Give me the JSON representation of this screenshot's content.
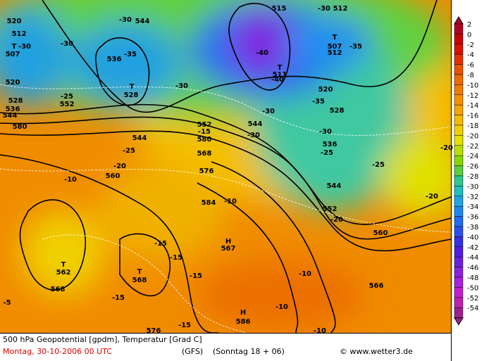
{
  "map": {
    "labels": [
      "520",
      "512",
      "T",
      "507",
      "-30",
      "520",
      "528",
      "536",
      "544",
      "552",
      "-25",
      "-30",
      "-30",
      "544",
      "-35",
      "536",
      "T",
      "528",
      "-30",
      "580",
      "544",
      "-25",
      "-20",
      "560",
      "-10",
      "552",
      "-15",
      "580",
      "568",
      "576",
      "584",
      "-10",
      "515",
      "-30",
      "512",
      "-40",
      "T",
      "511",
      "-40",
      "T",
      "507",
      "512",
      "-35",
      "520",
      "-35",
      "528",
      "-30",
      "544",
      "-30",
      "-30",
      "536",
      "-25",
      "544",
      "552",
      "-20",
      "-25",
      "-20",
      "-20",
      "560",
      "-15",
      "-15",
      "H",
      "567",
      "T",
      "562",
      "T",
      "568",
      "-15",
      "-10",
      "566",
      "-15",
      "568",
      "-5",
      "-10",
      "H",
      "586",
      "576",
      "-15",
      "-10"
    ]
  },
  "legend": {
    "ticks": [
      2,
      0,
      -2,
      -4,
      -6,
      -8,
      -10,
      -12,
      -14,
      -16,
      -18,
      -20,
      -22,
      -24,
      -26,
      -28,
      -30,
      -32,
      -34,
      -36,
      -38,
      -40,
      -42,
      -44,
      -46,
      -48,
      -50,
      -52,
      -54
    ],
    "colors": [
      "#b00020",
      "#c80000",
      "#d81000",
      "#e43000",
      "#ec5000",
      "#f06800",
      "#f07c00",
      "#f49000",
      "#f4a400",
      "#f4bc00",
      "#f0d000",
      "#e4e000",
      "#b8e000",
      "#88d800",
      "#58d040",
      "#30c890",
      "#20c0c0",
      "#20a4e4",
      "#2088f0",
      "#206cf0",
      "#2850f0",
      "#3430e4",
      "#5020e0",
      "#6c20e0",
      "#8c20e0",
      "#a820e0",
      "#c020d0",
      "#c020b0",
      "#a02090"
    ]
  },
  "footer": {
    "title": "500 hPa Geopotential [gpdm], Temperatur [Grad C]",
    "date": "Montag, 30-10-2006  00 UTC",
    "model": "(GFS)",
    "run": "(Sonntag 18 + 06)",
    "credit": "© www.wetter3.de"
  }
}
